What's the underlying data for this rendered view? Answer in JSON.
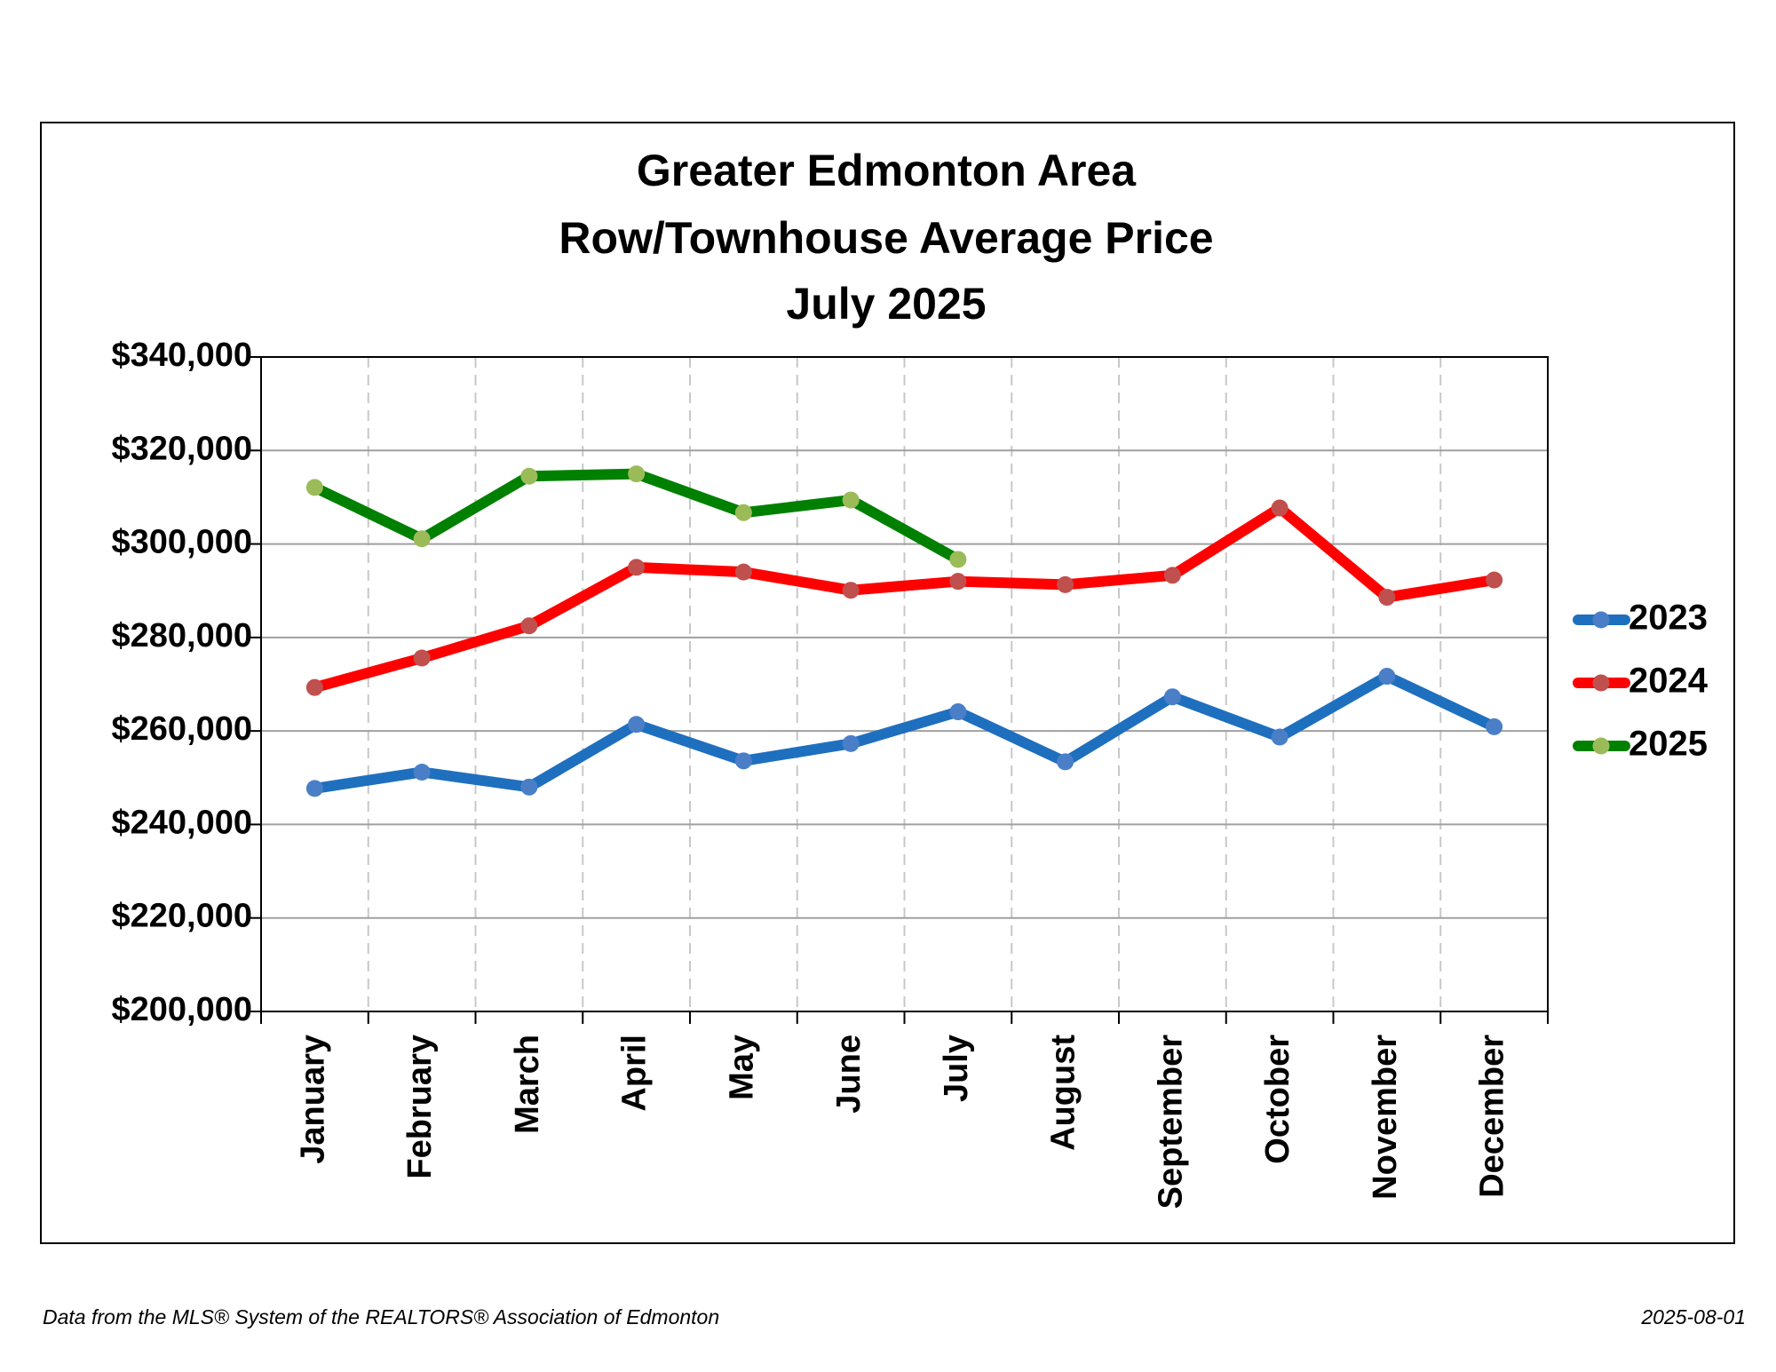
{
  "chart_data": {
    "type": "line",
    "title": [
      "Greater Edmonton Area",
      "Row/Townhouse Average Price",
      "July 2025"
    ],
    "categories": [
      "January",
      "February",
      "March",
      "April",
      "May",
      "June",
      "July",
      "August",
      "September",
      "October",
      "November",
      "December"
    ],
    "series": [
      {
        "name": "2023",
        "color": "#1f6fbf",
        "marker_color": "#4a7fc8",
        "values": [
          247700,
          251200,
          248000,
          261400,
          253600,
          257300,
          264100,
          253400,
          267300,
          258700,
          271700,
          260900
        ]
      },
      {
        "name": "2024",
        "color": "#ff0000",
        "marker_color": "#c0504d",
        "values": [
          269300,
          275600,
          282500,
          295000,
          294000,
          290100,
          292000,
          291300,
          293300,
          307700,
          288600,
          292300
        ]
      },
      {
        "name": "2025",
        "color": "#008000",
        "marker_color": "#9bbb59",
        "values": [
          312100,
          301100,
          314500,
          315000,
          306700,
          309400,
          296700,
          null,
          null,
          null,
          null,
          null
        ]
      }
    ],
    "ylim": [
      200000,
      340000
    ],
    "yticks": [
      {
        "value": 200000,
        "label": "$200,000"
      },
      {
        "value": 220000,
        "label": "$220,000"
      },
      {
        "value": 240000,
        "label": "$240,000"
      },
      {
        "value": 260000,
        "label": "$260,000"
      },
      {
        "value": 280000,
        "label": "$280,000"
      },
      {
        "value": 300000,
        "label": "$300,000"
      },
      {
        "value": 320000,
        "label": "$320,000"
      },
      {
        "value": 340000,
        "label": "$340,000"
      }
    ],
    "grid": true,
    "legend": "right",
    "footnote": "Data from the MLS® System of the REALTORS® Association of Edmonton",
    "date": "2025-08-01"
  }
}
